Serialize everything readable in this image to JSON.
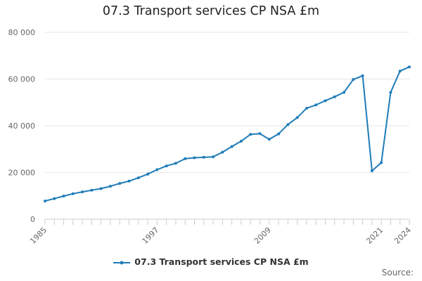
{
  "chart_data": {
    "type": "line",
    "title": "07.3 Transport services CP NSA £m",
    "xlabel": "",
    "ylabel": "",
    "x": [
      1985,
      1986,
      1987,
      1988,
      1989,
      1990,
      1991,
      1992,
      1993,
      1994,
      1995,
      1996,
      1997,
      1998,
      1999,
      2000,
      2001,
      2002,
      2003,
      2004,
      2005,
      2006,
      2007,
      2008,
      2009,
      2010,
      2011,
      2012,
      2013,
      2014,
      2015,
      2016,
      2017,
      2018,
      2019,
      2020,
      2021,
      2022,
      2023,
      2024
    ],
    "series": [
      {
        "name": "07.3 Transport services CP NSA £m",
        "color": "#1f7cb8",
        "values": [
          7800,
          8800,
          9900,
          10900,
          11700,
          12400,
          13100,
          14100,
          15300,
          16300,
          17700,
          19300,
          21200,
          22800,
          23900,
          25900,
          26300,
          26500,
          26700,
          28700,
          31100,
          33400,
          36300,
          36600,
          34200,
          36500,
          40500,
          43500,
          47500,
          48900,
          50700,
          52400,
          54300,
          59800,
          61400,
          20700,
          24200,
          54300,
          63400,
          65200
        ]
      }
    ],
    "xticks": [
      "1985",
      "1997",
      "2009",
      "2021",
      "2024"
    ],
    "yticks": [
      {
        "value": 0,
        "label": "0"
      },
      {
        "value": 20000,
        "label": "20 000"
      },
      {
        "value": 40000,
        "label": "40 000"
      },
      {
        "value": 60000,
        "label": "60 000"
      },
      {
        "value": 80000,
        "label": "80 000"
      }
    ],
    "ylim": [
      0,
      80000
    ],
    "xlim": [
      1985,
      2024
    ],
    "grid": true,
    "legend_position": "bottom-center",
    "source_label": "Source:"
  }
}
